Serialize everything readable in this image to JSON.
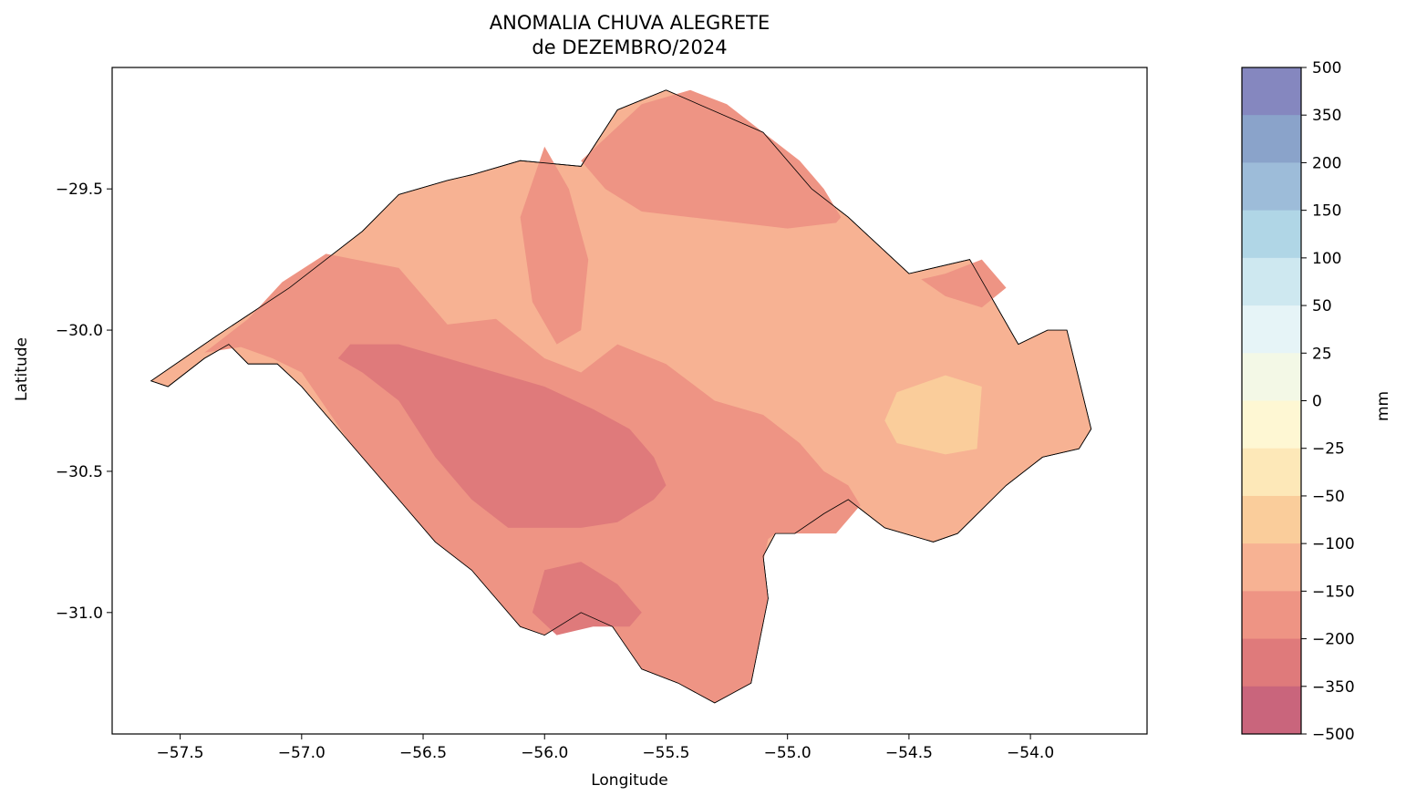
{
  "title": {
    "line1": "ANOMALIA CHUVA ALEGRETE",
    "line2": "de DEZEMBRO/2024"
  },
  "chart_data": {
    "type": "heatmap",
    "title": "ANOMALIA CHUVA ALEGRETE de DEZEMBRO/2024",
    "xlabel": "Longitude",
    "ylabel": "Latitude",
    "xlim": [
      -57.78,
      -53.52
    ],
    "ylim": [
      -31.43,
      -29.07
    ],
    "xticks": [
      -57.5,
      -57.0,
      -56.5,
      -56.0,
      -55.5,
      -55.0,
      -54.5,
      -54.0
    ],
    "xtick_labels": [
      "−57.5",
      "−57.0",
      "−56.5",
      "−56.0",
      "−55.5",
      "−55.0",
      "−54.5",
      "−54.0"
    ],
    "yticks": [
      -29.5,
      -30.0,
      -30.5,
      -31.0
    ],
    "ytick_labels": [
      "−29.5",
      "−30.0",
      "−30.5",
      "−31.0"
    ],
    "grid": false,
    "colorbar": {
      "label": "mm",
      "tick_labels": [
        "500",
        "350",
        "200",
        "150",
        "100",
        "50",
        "25",
        "0",
        "−25",
        "−50",
        "−100",
        "−150",
        "−200",
        "−350",
        "−500"
      ],
      "colors_top_to_bottom": [
        "#8587bf",
        "#8aa3ca",
        "#9dbcd9",
        "#b0d6e6",
        "#cee8f0",
        "#e6f4f7",
        "#f3f8e6",
        "#fef7d3",
        "#fde8b8",
        "#facd9b",
        "#f7b293",
        "#ee9484",
        "#df7a7b",
        "#c9657c"
      ]
    },
    "regions": [
      {
        "lon": [
          -57.62,
          -57.35,
          -57.05,
          -56.75,
          -56.6,
          -56.4,
          -56.3,
          -56.1,
          -55.85,
          -55.7,
          -55.5,
          -55.1,
          -54.9,
          -54.75,
          -54.5,
          -54.25,
          -54.05,
          -53.93,
          -53.85,
          -53.75,
          -53.8,
          -53.95,
          -54.1,
          -54.3,
          -54.4,
          -54.6,
          -54.75,
          -54.85,
          -54.97,
          -55.05,
          -55.1,
          -55.08,
          -55.15,
          -55.3,
          -55.45,
          -55.6,
          -55.72,
          -55.85,
          -56.0,
          -56.1,
          -56.3,
          -56.45,
          -56.6,
          -56.8,
          -57.0,
          -57.1,
          -57.22,
          -57.3,
          -57.4,
          -57.55,
          -57.62
        ],
        "lat": [
          -30.18,
          -30.02,
          -29.85,
          -29.65,
          -29.52,
          -29.47,
          -29.45,
          -29.4,
          -29.42,
          -29.22,
          -29.15,
          -29.3,
          -29.5,
          -29.6,
          -29.8,
          -29.75,
          -30.05,
          -30.0,
          -30.0,
          -30.35,
          -30.42,
          -30.45,
          -30.55,
          -30.72,
          -30.75,
          -30.7,
          -30.6,
          -30.65,
          -30.72,
          -30.72,
          -30.8,
          -30.95,
          -31.25,
          -31.32,
          -31.25,
          -31.2,
          -31.05,
          -31.0,
          -31.08,
          -31.05,
          -30.85,
          -30.75,
          -30.6,
          -30.4,
          -30.2,
          -30.12,
          -30.12,
          -30.05,
          -30.1,
          -30.2,
          -30.18
        ],
        "class": "−150 to −100"
      },
      {
        "lon": [
          -57.4,
          -57.22,
          -57.08,
          -56.9,
          -56.6,
          -56.4,
          -56.2,
          -56.0,
          -55.85,
          -55.7,
          -55.5,
          -55.3,
          -55.1,
          -54.95,
          -54.85,
          -54.75,
          -54.7,
          -54.8,
          -54.95,
          -55.05,
          -55.08,
          -55.1,
          -55.08,
          -55.15,
          -55.3,
          -55.45,
          -55.6,
          -55.72,
          -55.85,
          -56.0,
          -56.1,
          -56.3,
          -56.45,
          -56.6,
          -56.8,
          -57.0,
          -57.12,
          -57.25,
          -57.4
        ],
        "lat": [
          -30.08,
          -29.96,
          -29.83,
          -29.73,
          -29.78,
          -29.98,
          -29.96,
          -30.1,
          -30.15,
          -30.05,
          -30.12,
          -30.25,
          -30.3,
          -30.4,
          -30.5,
          -30.55,
          -30.62,
          -30.72,
          -30.72,
          -30.72,
          -30.74,
          -30.82,
          -30.95,
          -31.25,
          -31.32,
          -31.25,
          -31.2,
          -31.05,
          -31.0,
          -31.08,
          -31.05,
          -30.85,
          -30.75,
          -30.6,
          -30.4,
          -30.15,
          -30.1,
          -30.06,
          -30.08
        ],
        "class": "−200 to −150"
      },
      {
        "lon": [
          -55.85,
          -55.6,
          -55.4,
          -55.25,
          -55.1,
          -54.95,
          -54.85,
          -54.78,
          -54.8,
          -55.0,
          -55.2,
          -55.4,
          -55.6,
          -55.75,
          -55.85
        ],
        "lat": [
          -29.4,
          -29.2,
          -29.15,
          -29.2,
          -29.3,
          -29.4,
          -29.5,
          -29.6,
          -29.62,
          -29.64,
          -29.62,
          -29.6,
          -29.58,
          -29.5,
          -29.4
        ],
        "class": "−200 to −150"
      },
      {
        "lon": [
          -56.0,
          -55.9,
          -55.82,
          -55.85,
          -55.95,
          -56.05,
          -56.1,
          -56.0
        ],
        "lat": [
          -29.35,
          -29.5,
          -29.75,
          -30.0,
          -30.05,
          -29.9,
          -29.6,
          -29.35
        ],
        "class": "−200 to −150"
      },
      {
        "lon": [
          -54.35,
          -54.2,
          -54.1,
          -54.2,
          -54.35,
          -54.45,
          -54.35
        ],
        "lat": [
          -29.8,
          -29.75,
          -29.85,
          -29.92,
          -29.88,
          -29.82,
          -29.8
        ],
        "class": "−200 to −150"
      },
      {
        "lon": [
          -56.8,
          -56.6,
          -56.4,
          -56.2,
          -56.0,
          -55.8,
          -55.65,
          -55.55,
          -55.5,
          -55.55,
          -55.7,
          -55.85,
          -56.0,
          -56.15,
          -56.3,
          -56.45,
          -56.6,
          -56.75,
          -56.85,
          -56.8
        ],
        "lat": [
          -30.05,
          -30.05,
          -30.1,
          -30.15,
          -30.2,
          -30.28,
          -30.35,
          -30.45,
          -30.55,
          -30.6,
          -30.68,
          -30.7,
          -30.7,
          -30.7,
          -30.6,
          -30.45,
          -30.25,
          -30.15,
          -30.1,
          -30.05
        ],
        "class": "−350 to −200"
      },
      {
        "lon": [
          -56.0,
          -55.85,
          -55.7,
          -55.6,
          -55.65,
          -55.8,
          -55.95,
          -56.05,
          -56.0
        ],
        "lat": [
          -30.85,
          -30.82,
          -30.9,
          -31.0,
          -31.05,
          -31.05,
          -31.08,
          -31.0,
          -30.85
        ],
        "class": "−350 to −200"
      },
      {
        "lon": [
          -54.55,
          -54.35,
          -54.2,
          -54.22,
          -54.35,
          -54.55,
          -54.6,
          -54.55
        ],
        "lat": [
          -30.22,
          -30.16,
          -30.2,
          -30.42,
          -30.44,
          -30.4,
          -30.32,
          -30.22
        ],
        "class": "−100 to −50"
      }
    ]
  }
}
